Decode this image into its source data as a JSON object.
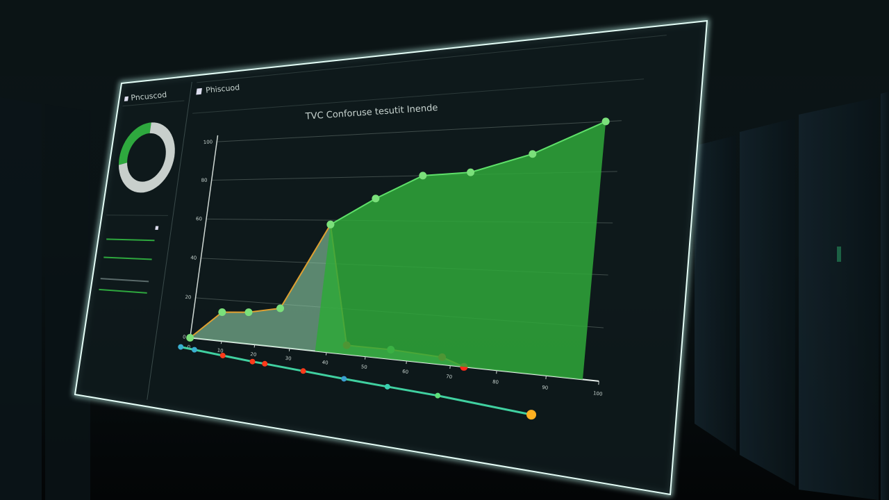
{
  "chart_data": [
    {
      "type": "area",
      "title": "TVC Conforuse tesutit Inende",
      "header": "Phiscuod",
      "xlim": [
        0,
        100
      ],
      "ylim": [
        0,
        100
      ],
      "xticks": [
        0,
        10,
        20,
        30,
        40,
        50,
        60,
        70,
        80,
        90,
        100
      ],
      "yticks": [
        0,
        20,
        40,
        60,
        80,
        100
      ],
      "grid": true,
      "series": [
        {
          "color": "#8fd0a8",
          "edge": "#e0a030",
          "x": [
            0,
            9,
            17,
            26,
            37,
            45,
            56,
            68,
            73
          ],
          "values": [
            0,
            14,
            15,
            18,
            58,
            4,
            4,
            3,
            0
          ],
          "point_colors": [
            "#7be07b",
            "#7be07b",
            "#7be07b",
            "#7be07b",
            "#7be07b",
            "#ff2a1a",
            "#7be07b",
            "#ff2a1a",
            "#ff2a1a"
          ]
        },
        {
          "color": "#2fa83a",
          "edge": "#5fe06a",
          "x": [
            37,
            48,
            59,
            70,
            83,
            97
          ],
          "values": [
            58,
            70,
            80,
            81,
            88,
            100
          ],
          "point_colors": [
            "#7be07b",
            "#7be07b",
            "#7be07b",
            "#7be07b",
            "#7be07b",
            "#7be07b"
          ]
        }
      ]
    },
    {
      "type": "pie",
      "header": "Pncuscod",
      "values": [
        28,
        72
      ],
      "colors": [
        "#2ea83e",
        "#c8cfcc"
      ]
    },
    {
      "type": "line",
      "color": "#40d0a0",
      "xlim": [
        0,
        100
      ],
      "ylim": [
        0,
        100
      ],
      "x": [
        0,
        5,
        15,
        25,
        29,
        41,
        53,
        65,
        78,
        100
      ],
      "values": [
        100,
        96,
        88,
        80,
        78,
        70,
        62,
        55,
        48,
        30
      ],
      "point_colors": [
        "#3ab0d0",
        "#3ab0d0",
        "#ff3a1a",
        "#ff3a1a",
        "#ff3a1a",
        "#ff3a1a",
        "#3a9fd0",
        "#3ad0b0",
        "#5fe07a",
        "#ffb020"
      ]
    }
  ]
}
